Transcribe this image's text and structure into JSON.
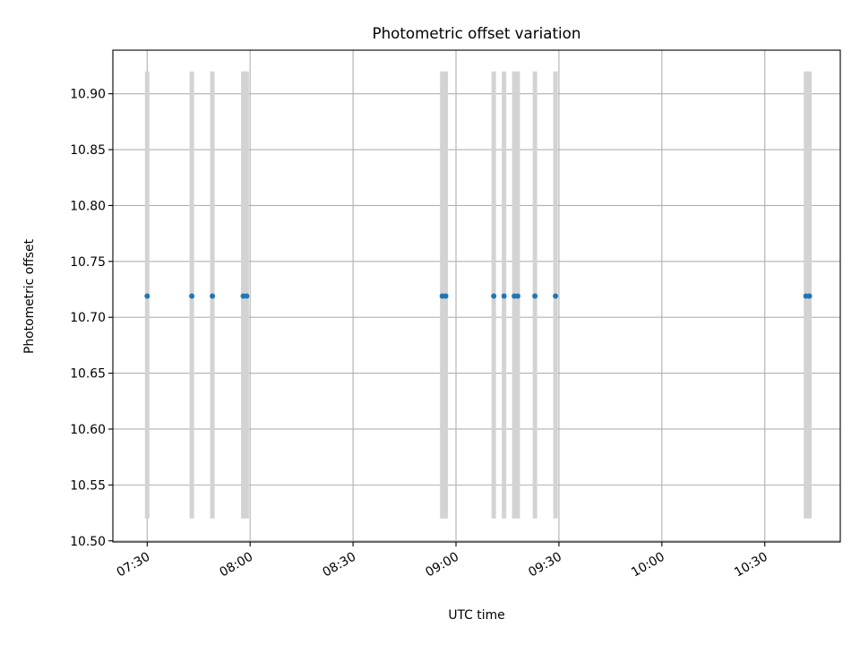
{
  "chart_data": {
    "type": "scatter",
    "title": "Photometric offset variation",
    "xlabel": "UTC time",
    "ylabel": "Photometric offset",
    "x_unit": "time of day (UTC)",
    "xlim": [
      "07:20",
      "10:52"
    ],
    "ylim": [
      10.499,
      10.939
    ],
    "x_ticks": [
      "07:30",
      "08:00",
      "08:30",
      "09:00",
      "09:30",
      "10:00",
      "10:30"
    ],
    "y_ticks": [
      "10.50",
      "10.55",
      "10.60",
      "10.65",
      "10.70",
      "10.75",
      "10.80",
      "10.85",
      "10.90"
    ],
    "grid": true,
    "x_tick_rotation": "30 degrees",
    "colors": {
      "points": "#1f77b4",
      "error_bars": "#d3d3d3",
      "grid": "#b0b0b0"
    },
    "error_bars": {
      "lower": 10.52,
      "upper": 10.92
    },
    "series": [
      {
        "points": [
          {
            "x": "07:30",
            "y": 10.719
          },
          {
            "x": "07:43",
            "y": 10.719
          },
          {
            "x": "07:49",
            "y": 10.719
          },
          {
            "x": "07:58",
            "y": 10.719
          },
          {
            "x": "07:59",
            "y": 10.719
          },
          {
            "x": "08:56",
            "y": 10.719
          },
          {
            "x": "08:57",
            "y": 10.719
          },
          {
            "x": "09:11",
            "y": 10.719
          },
          {
            "x": "09:14",
            "y": 10.719
          },
          {
            "x": "09:17",
            "y": 10.719
          },
          {
            "x": "09:18",
            "y": 10.719
          },
          {
            "x": "09:23",
            "y": 10.719
          },
          {
            "x": "09:29",
            "y": 10.719
          },
          {
            "x": "10:42",
            "y": 10.719
          },
          {
            "x": "10:43",
            "y": 10.719
          }
        ]
      }
    ]
  }
}
